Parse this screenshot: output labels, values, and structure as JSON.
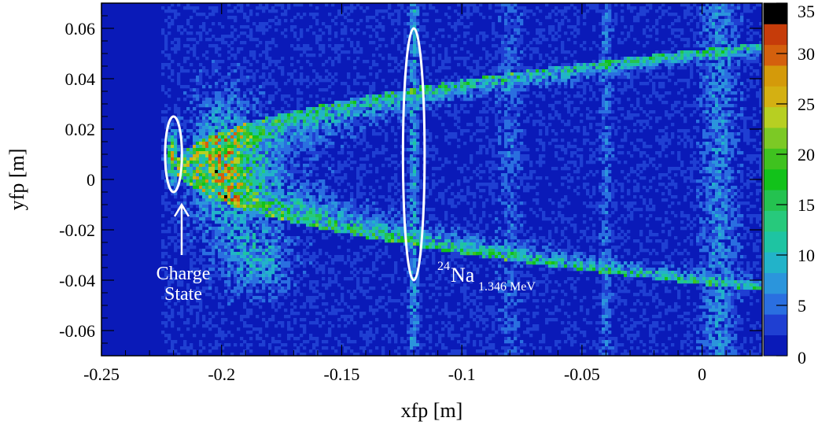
{
  "chart_data": {
    "type": "heatmap",
    "xlabel": "xfp [m]",
    "ylabel": "yfp [m]",
    "xlim": [
      -0.25,
      0.025
    ],
    "ylim": [
      -0.07,
      0.07
    ],
    "x_ticks": [
      {
        "value": -0.25,
        "label": "-0.25"
      },
      {
        "value": -0.2,
        "label": "-0.2"
      },
      {
        "value": -0.15,
        "label": "-0.15"
      },
      {
        "value": -0.1,
        "label": "-0.1"
      },
      {
        "value": -0.05,
        "label": "-0.05"
      },
      {
        "value": 0,
        "label": "0"
      }
    ],
    "y_ticks": [
      {
        "value": 0.06,
        "label": "0.06"
      },
      {
        "value": 0.04,
        "label": "0.04"
      },
      {
        "value": 0.02,
        "label": "0.02"
      },
      {
        "value": 0,
        "label": "0"
      },
      {
        "value": -0.02,
        "label": "-0.02"
      },
      {
        "value": -0.04,
        "label": "-0.04"
      },
      {
        "value": -0.06,
        "label": "-0.06"
      }
    ],
    "colorbar": {
      "range": [
        0,
        35
      ],
      "ticks": [
        {
          "value": 0,
          "label": "0"
        },
        {
          "value": 5,
          "label": "5"
        },
        {
          "value": 10,
          "label": "10"
        },
        {
          "value": 15,
          "label": "15"
        },
        {
          "value": 20,
          "label": "20"
        },
        {
          "value": 25,
          "label": "25"
        },
        {
          "value": 30,
          "label": "30"
        },
        {
          "value": 35,
          "label": "35"
        }
      ],
      "colors": [
        "#0a1ab8",
        "#1f3fd2",
        "#2a6fe0",
        "#2b95dc",
        "#22b3c9",
        "#1ec4a2",
        "#27c97c",
        "#24c250",
        "#12c21a",
        "#3fc21f",
        "#7cc925",
        "#b7cf22",
        "#d4b012",
        "#d49a0a",
        "#d4600d",
        "#c63c0a",
        "#000000"
      ]
    },
    "regions": [
      {
        "name": "charge-state",
        "x_center": -0.22,
        "y_center": 0.01,
        "x_halfwidth": 0.0035,
        "y_halfwidth": 0.015
      },
      {
        "name": "24na-peak",
        "x_center": -0.12,
        "y_center": 0.01,
        "x_halfwidth": 0.0045,
        "y_halfwidth": 0.05
      }
    ],
    "annotations": {
      "charge_line1": "Charge",
      "charge_line2": "State",
      "na_mass": "24",
      "na_symbol": "Na",
      "na_energy": "1.346 MeV"
    }
  }
}
